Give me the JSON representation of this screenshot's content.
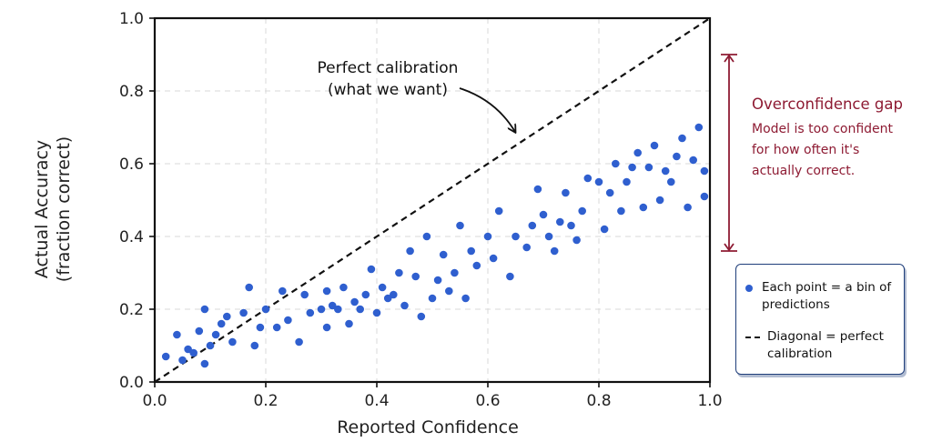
{
  "chart_data": {
    "type": "scatter",
    "xlabel": "Reported Confidence",
    "ylabel_lines": [
      "Actual Accuracy",
      "(fraction correct)"
    ],
    "xlim": [
      0.0,
      1.0
    ],
    "ylim": [
      0.0,
      1.0
    ],
    "xticks": [
      "0.0",
      "0.2",
      "0.4",
      "0.6",
      "0.8",
      "1.0"
    ],
    "yticks": [
      "0.0",
      "0.2",
      "0.4",
      "0.6",
      "0.8",
      "1.0"
    ],
    "grid": true,
    "legend_position": "right",
    "colors": {
      "points": "#2f5fcf",
      "diagonal": "#111111",
      "gap": "#8e1b33",
      "legend_border": "#1f3e7a"
    },
    "series": [
      {
        "name": "Each point = a bin of predictions",
        "x": [
          0.02,
          0.04,
          0.05,
          0.06,
          0.07,
          0.08,
          0.09,
          0.09,
          0.1,
          0.11,
          0.12,
          0.13,
          0.14,
          0.16,
          0.17,
          0.18,
          0.19,
          0.2,
          0.22,
          0.23,
          0.24,
          0.26,
          0.27,
          0.28,
          0.3,
          0.31,
          0.31,
          0.32,
          0.33,
          0.34,
          0.35,
          0.36,
          0.37,
          0.38,
          0.39,
          0.4,
          0.41,
          0.42,
          0.43,
          0.44,
          0.45,
          0.46,
          0.47,
          0.48,
          0.49,
          0.5,
          0.51,
          0.52,
          0.53,
          0.54,
          0.55,
          0.56,
          0.57,
          0.58,
          0.6,
          0.61,
          0.62,
          0.64,
          0.65,
          0.67,
          0.68,
          0.69,
          0.7,
          0.71,
          0.72,
          0.73,
          0.74,
          0.75,
          0.76,
          0.77,
          0.78,
          0.8,
          0.81,
          0.82,
          0.83,
          0.84,
          0.85,
          0.86,
          0.87,
          0.88,
          0.89,
          0.9,
          0.91,
          0.92,
          0.93,
          0.94,
          0.95,
          0.96,
          0.97,
          0.98,
          0.99,
          0.99
        ],
        "y": [
          0.07,
          0.13,
          0.06,
          0.09,
          0.08,
          0.14,
          0.05,
          0.2,
          0.1,
          0.13,
          0.16,
          0.18,
          0.11,
          0.19,
          0.26,
          0.1,
          0.15,
          0.2,
          0.15,
          0.25,
          0.17,
          0.11,
          0.24,
          0.19,
          0.2,
          0.15,
          0.25,
          0.21,
          0.2,
          0.26,
          0.16,
          0.22,
          0.2,
          0.24,
          0.31,
          0.19,
          0.26,
          0.23,
          0.24,
          0.3,
          0.21,
          0.36,
          0.29,
          0.18,
          0.4,
          0.23,
          0.28,
          0.35,
          0.25,
          0.3,
          0.43,
          0.23,
          0.36,
          0.32,
          0.4,
          0.34,
          0.47,
          0.29,
          0.4,
          0.37,
          0.43,
          0.53,
          0.46,
          0.4,
          0.36,
          0.44,
          0.52,
          0.43,
          0.39,
          0.47,
          0.56,
          0.55,
          0.42,
          0.52,
          0.6,
          0.47,
          0.55,
          0.59,
          0.63,
          0.48,
          0.59,
          0.65,
          0.5,
          0.58,
          0.55,
          0.62,
          0.67,
          0.48,
          0.61,
          0.7,
          0.51,
          0.58
        ]
      },
      {
        "name": "Diagonal = perfect calibration",
        "x": [
          0.0,
          1.0
        ],
        "y": [
          0.0,
          1.0
        ]
      }
    ],
    "annotations": {
      "perfect_calibration": {
        "lines": [
          "Perfect calibration",
          "(what we want)"
        ]
      },
      "overconfidence_gap": {
        "title": "Overconfidence gap",
        "body_lines": [
          "Model is too confident",
          "for how often it's",
          "actually correct."
        ],
        "y_range": [
          0.36,
          0.9
        ]
      }
    }
  },
  "legend": {
    "items": [
      {
        "marker": "dot",
        "text": "Each point = a bin of predictions"
      },
      {
        "marker": "dash",
        "text": "Diagonal = perfect calibration"
      }
    ]
  }
}
